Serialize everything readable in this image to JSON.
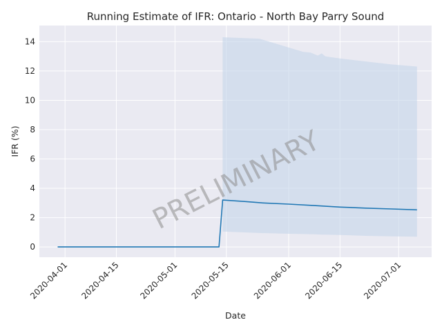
{
  "chart_data": {
    "type": "line",
    "title": "Running Estimate of IFR: Ontario - North Bay Parry Sound",
    "xlabel": "Date",
    "ylabel": "IFR (%)",
    "watermark": "PRELIMINARY",
    "xlim": [
      "2020-03-25",
      "2020-07-10"
    ],
    "ylim": [
      -0.7,
      15.1
    ],
    "grid": true,
    "x_ticks": [
      "2020-04-01",
      "2020-04-15",
      "2020-05-01",
      "2020-05-15",
      "2020-06-01",
      "2020-06-15",
      "2020-07-01"
    ],
    "y_ticks": [
      0,
      2,
      4,
      6,
      8,
      10,
      12,
      14
    ],
    "colors": {
      "line": "#1f77b4",
      "band": "#c5d6ea",
      "background": "#eaeaf2",
      "grid": "#ffffff"
    },
    "series": [
      {
        "x": [
          "2020-03-30",
          "2020-05-13",
          "2020-05-14",
          "2020-05-20",
          "2020-05-25",
          "2020-06-01",
          "2020-06-08",
          "2020-06-15",
          "2020-06-22",
          "2020-06-29",
          "2020-07-06"
        ],
        "y": [
          0,
          0,
          3.2,
          3.1,
          3.0,
          2.92,
          2.82,
          2.72,
          2.65,
          2.59,
          2.53
        ]
      }
    ],
    "band": {
      "x": [
        "2020-05-14",
        "2020-05-24",
        "2020-06-01",
        "2020-06-05",
        "2020-06-07",
        "2020-06-08",
        "2020-06-09",
        "2020-06-10",
        "2020-06-11",
        "2020-06-15",
        "2020-06-22",
        "2020-06-29",
        "2020-07-06"
      ],
      "upper": [
        14.3,
        14.2,
        13.6,
        13.3,
        13.25,
        13.15,
        13.05,
        13.2,
        13.0,
        12.85,
        12.65,
        12.45,
        12.3
      ],
      "lower": [
        1.05,
        0.95,
        0.9,
        0.88,
        0.87,
        0.86,
        0.85,
        0.84,
        0.84,
        0.82,
        0.76,
        0.72,
        0.7
      ]
    }
  }
}
